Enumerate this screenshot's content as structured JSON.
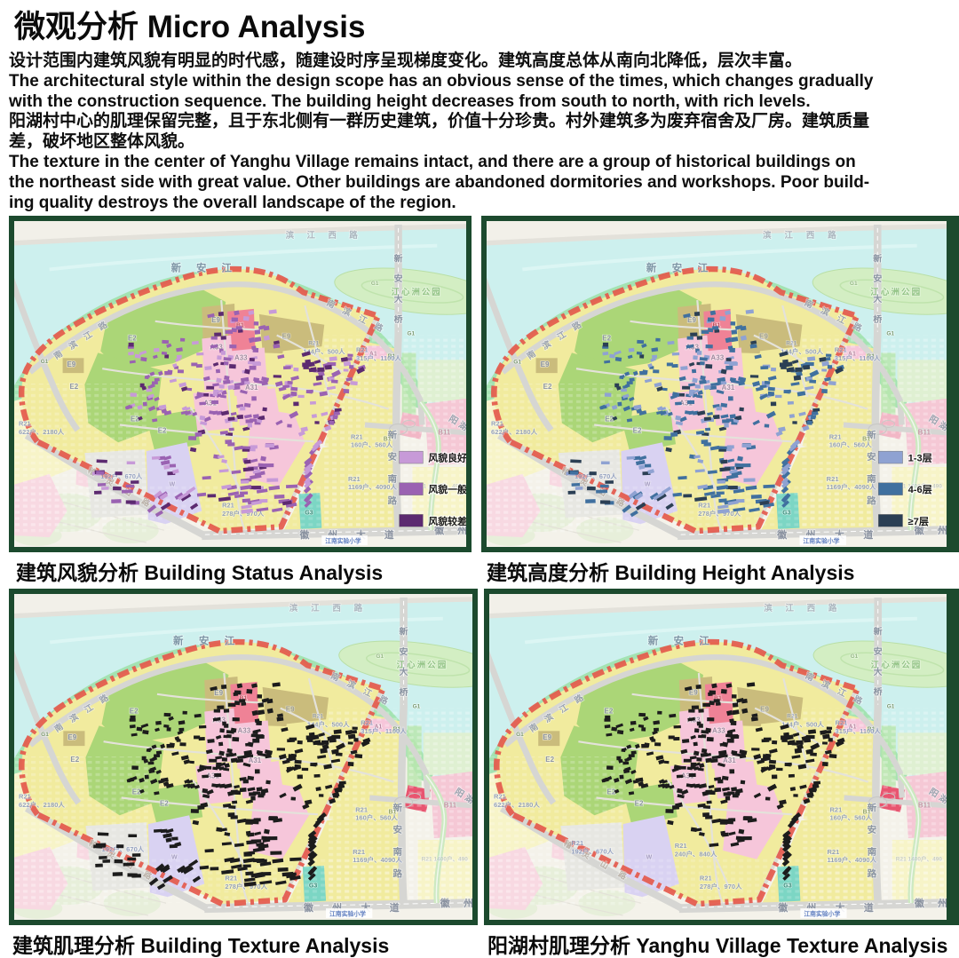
{
  "header": {
    "title": "微观分析 Micro Analysis",
    "lines": [
      "设计范围内建筑风貌有明显的时代感，随建设时序呈现梯度变化。建筑高度总体从南向北降低，层次丰富。",
      "The architectural style within the design scope has an obvious sense of the times, which changes gradually",
      "with the construction sequence. The building height decreases from south to north, with rich levels.",
      "阳湖村中心的肌理保留完整，且于东北侧有一群历史建筑，价值十分珍贵。村外建筑多为废弃宿舍及厂房。建筑质量",
      "差，破坏地区整体风貌。",
      "The texture in the center of Yanghu Village remains intact, and there are a group of historical buildings on",
      "the northeast side with great value. Other buildings are abandoned dormitories and workshops. Poor build-",
      "ing quality destroys the overall landscape of the region."
    ]
  },
  "panels": [
    {
      "id": "status",
      "caption": "建筑风貌分析 Building Status Analysis",
      "mode": "status",
      "colors": [
        "#c79ad8",
        "#9a62b2",
        "#5c2a70"
      ],
      "accent": "#f2b7c6",
      "legend": [
        {
          "label": "风貌良好",
          "color": "#c79ad8"
        },
        {
          "label": "风貌一般",
          "color": "#9a62b2"
        },
        {
          "label": "风貌较差",
          "color": "#5c2a70"
        }
      ]
    },
    {
      "id": "height",
      "caption": "建筑高度分析 Building Height Analysis",
      "mode": "height",
      "colors": [
        "#8fa2d2",
        "#40709f",
        "#2b3f54"
      ],
      "accent": "#f2b7c6",
      "legend": [
        {
          "label": "1-3层",
          "color": "#8fa2d2"
        },
        {
          "label": "4-6层",
          "color": "#40709f"
        },
        {
          "label": "≥7层",
          "color": "#2b3f54"
        }
      ]
    },
    {
      "id": "texture",
      "caption": "建筑肌理分析 Building Texture Analysis",
      "mode": "texture",
      "colors": [
        "#1c1c1c",
        "#1c1c1c",
        "#1c1c1c"
      ],
      "accent": "#e85570",
      "legend": []
    },
    {
      "id": "village",
      "caption": "阳湖村肌理分析 Yanghu Village Texture Analysis",
      "mode": "texture-core",
      "colors": [
        "#1c1c1c",
        "#1c1c1c",
        "#1c1c1c"
      ],
      "accent": "#e85570",
      "legend": []
    }
  ],
  "base_colors": {
    "water": "#cdf0ee",
    "shore": "#9fe2ac",
    "park": "#abd677",
    "yellow": "#f1eb9e",
    "tan": "#cabc7c",
    "pink": "#f6c6da",
    "red_zone": "#ef8296",
    "lavender": "#d9d2f2",
    "gray_zone": "#e7e7e2",
    "teal": "#7cd6c4",
    "boundary": "#e4594c",
    "road": "#d6d6d3",
    "pale": "#f4f2ea",
    "pale_yellow": "#f7f4c8",
    "pale_pink": "#f8d9e2",
    "pale_green": "#dff0d2",
    "pink_b11": "#f5c8d5",
    "frame": "#1c4a2e",
    "frame_inner": "#cf9350"
  },
  "map_labels": {
    "river": "新 安 江",
    "road_binjiang_west": "滨 江 西 路",
    "park_jiangxinzhou": "江心洲公园",
    "bridge_xinan": "新安大桥",
    "road_nanbinjiang": "南 滨 江 路",
    "road_xinan_south": "新安南路",
    "road_huizhou": "徽 州 大 道",
    "road_huizhou_partial": "徽 州 大",
    "road_yanghu": "阳湖",
    "road_jiling": "稽 灵 山 路",
    "school": "江南实验小学",
    "zone_e2": "E2",
    "zone_e9": "E9",
    "zone_a33": "A33",
    "zone_a31": "A31",
    "zone_a1": "A1",
    "zone_b1": "B1",
    "zone_b11": "B11",
    "zone_g1": "G1",
    "zone_g3": "G3",
    "zone_w": "W",
    "zone_r21": "R21",
    "r21_622": "R21\n622户、2180人",
    "r21_315": "R21\n315户、1100人",
    "r21_160": "R21\n160户、560人",
    "r21_1169": "R21\n1169户、4090人",
    "r21_278": "R21\n278户、970人",
    "r21_1400": "R21 1400户、490",
    "r21_192": "192户、670人",
    "r21_192_full": "R21\n192户、670人",
    "r21_240": "R21\n240户、840人",
    "hh_144": "144户、500人"
  }
}
